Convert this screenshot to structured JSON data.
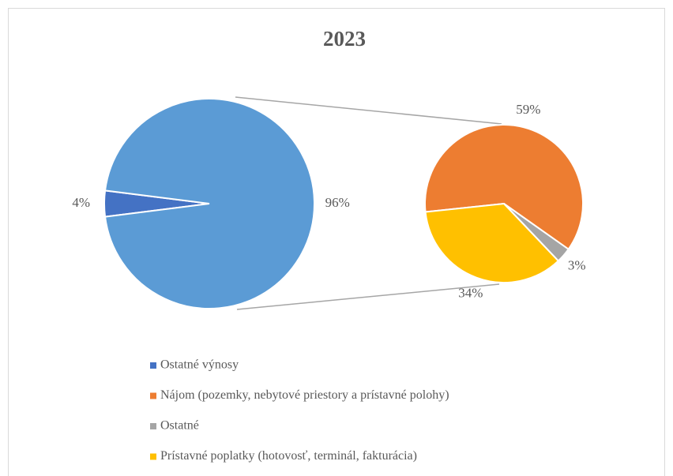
{
  "chart_data": {
    "type": "pie",
    "title": "2023",
    "main": {
      "categories": [
        "Ostatné výnosy",
        null
      ],
      "values": [
        4,
        96
      ],
      "value_labels": [
        "4%",
        "96%"
      ],
      "colors": [
        "#4472c4",
        "#5b9bd5"
      ]
    },
    "secondary": {
      "categories": [
        "Nájom (pozemky, nebytové priestory a prístavné polohy)",
        "Ostatné",
        "Prístavné poplatky (hotovosť, terminál, fakturácia)"
      ],
      "values": [
        59,
        3,
        34
      ],
      "value_labels": [
        "59%",
        "3%",
        "34%"
      ],
      "colors": [
        "#ed7d31",
        "#a5a5a5",
        "#ffc000"
      ]
    }
  }
}
